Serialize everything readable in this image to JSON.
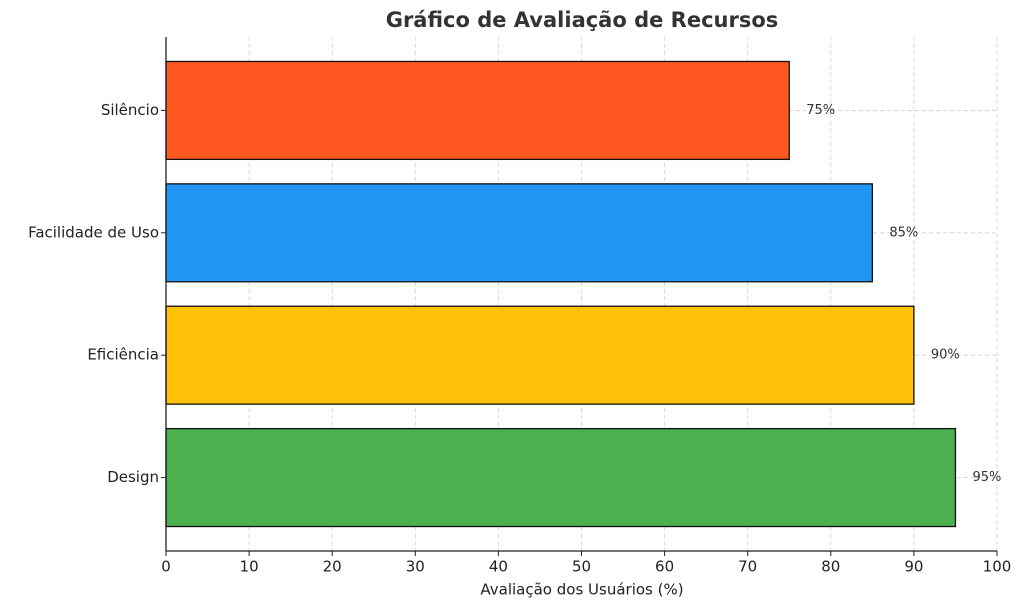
{
  "chart_data": {
    "type": "barh",
    "title": "Gráfico de Avaliação de Recursos",
    "x_label": "Avaliação dos Usuários (%)",
    "categories": [
      "Silêncio",
      "Facilidade de Uso",
      "Eficiência",
      "Design"
    ],
    "values": [
      75,
      85,
      90,
      95
    ],
    "value_labels": [
      "75%",
      "85%",
      "90%",
      "95%"
    ],
    "colors": [
      "#ff5722",
      "#2196f3",
      "#ffc107",
      "#4caf50"
    ],
    "xlim": [
      0,
      100
    ],
    "xticks": [
      0,
      10,
      20,
      30,
      40,
      50,
      60,
      70,
      80,
      90,
      100
    ],
    "grid": true
  }
}
